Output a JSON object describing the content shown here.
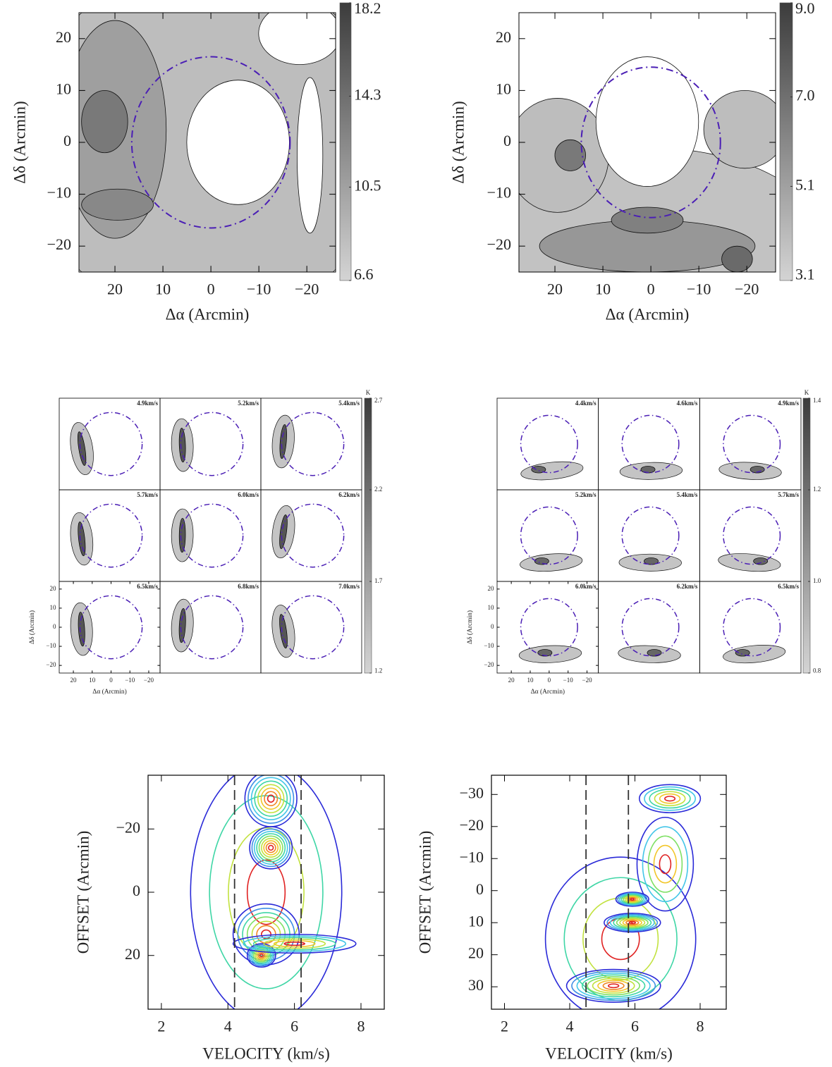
{
  "chart_data": [
    {
      "type": "map",
      "xlabel": "Δα (Arcmin)",
      "ylabel": "Δδ (Arcmin)",
      "xlim": [
        27.5,
        -26
      ],
      "ylim": [
        -25,
        25
      ],
      "xticks": [
        20,
        10,
        0,
        {
          "value": -10,
          "label": "−10"
        },
        {
          "value": -20,
          "label": "−20"
        }
      ],
      "yticks": [
        {
          "value": -20,
          "label": "−20"
        },
        {
          "value": -10,
          "label": "−10"
        },
        0,
        10,
        20
      ],
      "colorbar": {
        "lim": [
          6.6,
          18.2
        ],
        "ticks": [
          6.6,
          10.5,
          14.3,
          18.2
        ],
        "colors": [
          "#d4d4d4",
          "#3c3c3c"
        ]
      },
      "circle": {
        "center": [
          0,
          0
        ],
        "radius": 16.5,
        "color": "#4b1fb5"
      }
    },
    {
      "type": "map",
      "xlabel": "Δα (Arcmin)",
      "ylabel": "Δδ (Arcmin)",
      "xlim": [
        27.5,
        -26
      ],
      "ylim": [
        -25,
        25
      ],
      "xticks": [
        20,
        10,
        0,
        {
          "value": -10,
          "label": "−10"
        },
        {
          "value": -20,
          "label": "−20"
        }
      ],
      "yticks": [
        {
          "value": -20,
          "label": "−20"
        },
        {
          "value": -10,
          "label": "−10"
        },
        0,
        10,
        20
      ],
      "colorbar": {
        "lim": [
          3.1,
          9.0
        ],
        "ticks": [
          3.1,
          5.1,
          {
            "value": 7,
            "label": "7.0"
          },
          {
            "value": 9,
            "label": "9.0"
          }
        ],
        "colors": [
          "#d4d4d4",
          "#3c3c3c"
        ]
      },
      "circle": {
        "center": [
          0,
          0
        ],
        "radius": 14.5,
        "color": "#4b1fb5"
      }
    },
    {
      "type": "channels",
      "panel_labels": [
        "4.9km/s",
        "5.2km/s",
        "5.4km/s",
        "5.7km/s",
        "6.0km/s",
        "6.2km/s",
        "6.5km/s",
        "6.8km/s",
        "7.0km/s"
      ],
      "label_color": "#e00000",
      "xlabel": "Δα (Arcmin)",
      "ylabel": "Δδ (Arcmin)",
      "xlim": [
        27.5,
        -26
      ],
      "ylim": [
        -24,
        24
      ],
      "xticks": [
        20,
        10,
        0,
        {
          "value": -10,
          "label": "−10"
        },
        {
          "value": -20,
          "label": "−20"
        }
      ],
      "yticks": [
        {
          "value": -20,
          "label": "−20"
        },
        {
          "value": -10,
          "label": "−10"
        },
        0,
        10,
        20
      ],
      "colorbar": {
        "label": "K",
        "lim": [
          1.2,
          2.7
        ],
        "ticks": [
          1.2,
          1.7,
          2.2,
          2.7
        ],
        "colors": [
          "#d4d4d4",
          "#3c3c3c"
        ]
      },
      "circle": {
        "center": [
          0,
          0
        ],
        "radius": 16.5,
        "color": "#4b1fb5"
      }
    },
    {
      "type": "channels",
      "panel_labels": [
        "4.4km/s",
        "4.6km/s",
        "4.9km/s",
        "5.2km/s",
        "5.4km/s",
        "5.7km/s",
        "6.0km/s",
        "6.2km/s",
        "6.5km/s"
      ],
      "label_color": "#e00000",
      "xlabel": "Δα (Arcmin)",
      "ylabel": "Δδ (Arcmin)",
      "xlim": [
        27.5,
        -26
      ],
      "ylim": [
        -24,
        24
      ],
      "xticks": [
        20,
        10,
        0,
        {
          "value": -10,
          "label": "−10"
        },
        {
          "value": -20,
          "label": "−20"
        }
      ],
      "yticks": [
        {
          "value": -20,
          "label": "−20"
        },
        {
          "value": -10,
          "label": "−10"
        },
        0,
        10,
        20
      ],
      "colorbar": {
        "label": "K",
        "lim": [
          0.8,
          1.4
        ],
        "ticks": [
          0.8,
          {
            "value": 1,
            "label": "1.0"
          },
          1.2,
          1.4
        ],
        "colors": [
          "#d4d4d4",
          "#3c3c3c"
        ]
      },
      "circle": {
        "center": [
          0,
          0
        ],
        "radius": 15,
        "color": "#4b1fb5"
      }
    },
    {
      "type": "pv",
      "xlabel": "VELOCITY (km/s)",
      "ylabel": "OFFSET (Arcmin)",
      "xlim": [
        1.6,
        8.7
      ],
      "ylim": [
        -37,
        37
      ],
      "y_inverted": true,
      "xticks": [
        2,
        4,
        6,
        8
      ],
      "yticks": [
        {
          "value": -20,
          "label": "−20"
        },
        0,
        20
      ],
      "vlines": [
        4.2,
        6.2
      ],
      "vline_color": "#333333",
      "colors": [
        "#2a2ad8",
        "#3f8fe6",
        "#44c6e8",
        "#3fd6a6",
        "#7ee063",
        "#c2e23f",
        "#f2c62a",
        "#f08524",
        "#e02222"
      ]
    },
    {
      "type": "pv",
      "xlabel": "VELOCITY (km/s)",
      "ylabel": "OFFSET (Arcmin)",
      "xlim": [
        1.6,
        8.8
      ],
      "ylim": [
        -36,
        37
      ],
      "y_inverted": true,
      "xticks": [
        2,
        4,
        6,
        8
      ],
      "yticks": [
        {
          "value": -30,
          "label": "−30"
        },
        {
          "value": -20,
          "label": "−20"
        },
        {
          "value": -10,
          "label": "−10"
        },
        0,
        10,
        20,
        30
      ],
      "vlines": [
        4.5,
        5.8
      ],
      "vline_color": "#333333",
      "colors": [
        "#2a2ad8",
        "#3f8fe6",
        "#44c6e8",
        "#3fd6a6",
        "#7ee063",
        "#c2e23f",
        "#f2c62a",
        "#f08524",
        "#e02222"
      ]
    }
  ]
}
